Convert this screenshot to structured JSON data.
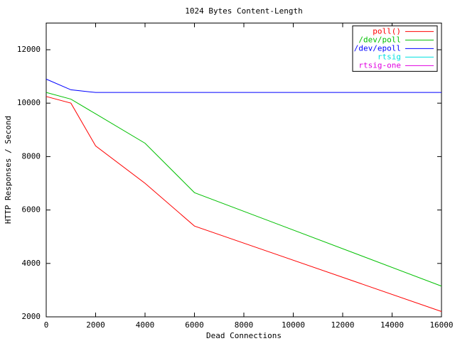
{
  "chart_data": {
    "type": "line",
    "title": "1024 Bytes Content-Length",
    "xlabel": "Dead Connections",
    "ylabel": "HTTP Responses / Second",
    "x": [
      0,
      1000,
      2000,
      4000,
      6000,
      16000
    ],
    "series": [
      {
        "name": "poll()",
        "color": "#ff0000",
        "values": [
          10250,
          10000,
          8400,
          7000,
          5400,
          2200
        ]
      },
      {
        "name": "/dev/poll",
        "color": "#00c000",
        "values": [
          10400,
          10150,
          9600,
          8500,
          6650,
          3150
        ]
      },
      {
        "name": "/dev/epoll",
        "color": "#0000ff",
        "values": [
          10900,
          10500,
          10400,
          10400,
          10400,
          10400
        ]
      },
      {
        "name": "rtsig",
        "color": "#00e0e0",
        "values": [
          null,
          null,
          null,
          null,
          null,
          null
        ]
      },
      {
        "name": "rtsig-one",
        "color": "#e000e0",
        "values": [
          null,
          null,
          null,
          null,
          null,
          null
        ]
      }
    ],
    "xlim": [
      0,
      16000
    ],
    "xticks": [
      0,
      2000,
      4000,
      6000,
      8000,
      10000,
      12000,
      14000,
      16000
    ],
    "ylim": [
      2000,
      13000
    ],
    "yticks": [
      2000,
      4000,
      6000,
      8000,
      10000,
      12000
    ],
    "legend": "upper right"
  }
}
